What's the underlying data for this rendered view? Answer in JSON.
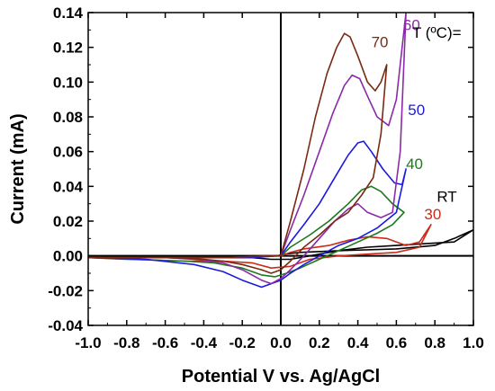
{
  "chart_data": {
    "type": "line",
    "xlabel": "Potential V vs. Ag/AgCl",
    "ylabel": "Current (mA)",
    "xlim": [
      -1.0,
      1.0
    ],
    "ylim": [
      -0.04,
      0.14
    ],
    "xticks": [
      -1.0,
      -0.8,
      -0.6,
      -0.4,
      -0.2,
      0.0,
      0.2,
      0.4,
      0.6,
      0.8,
      1.0
    ],
    "xtick_labels": [
      "-1.0",
      "-0.8",
      "-0.6",
      "-0.4",
      "-0.2",
      "0.0",
      "0.2",
      "0.4",
      "0.6",
      "0.8",
      "1.0"
    ],
    "yticks": [
      -0.04,
      -0.02,
      0.0,
      0.02,
      0.04,
      0.06,
      0.08,
      0.1,
      0.12,
      0.14
    ],
    "ytick_labels": [
      "-0.04",
      "-0.02",
      "0.00",
      "0.02",
      "0.04",
      "0.06",
      "0.08",
      "0.10",
      "0.12",
      "0.14"
    ],
    "legend_title": "T (ºC)=",
    "series": [
      {
        "name": "RT",
        "color": "#000000",
        "label_pos": [
          0.81,
          0.031
        ],
        "x": [
          -1.0,
          -0.6,
          -0.3,
          -0.1,
          -0.02,
          0.02,
          0.1,
          0.3,
          0.6,
          0.8,
          0.9,
          1.0,
          0.9,
          0.75,
          0.6,
          0.45,
          0.3,
          0.15,
          0.05,
          -0.05,
          -0.15,
          -0.3,
          -0.6,
          -1.0
        ],
        "y": [
          0.0,
          0.0,
          0.0,
          0.0,
          0.0,
          0.001,
          0.002,
          0.003,
          0.004,
          0.006,
          0.01,
          0.015,
          0.008,
          0.007,
          0.006,
          0.005,
          0.003,
          0.0,
          -0.002,
          -0.002,
          -0.001,
          -0.001,
          -0.001,
          -0.0005
        ]
      },
      {
        "name": "30",
        "color": "#cc2a1a",
        "label_pos": [
          0.745,
          0.021
        ],
        "x": [
          -1.0,
          -0.6,
          -0.2,
          -0.05,
          0.0,
          0.05,
          0.12,
          0.25,
          0.35,
          0.45,
          0.55,
          0.65,
          0.72,
          0.78,
          0.72,
          0.6,
          0.45,
          0.3,
          0.15,
          0.05,
          -0.05,
          -0.15,
          -0.3,
          -0.5,
          -0.8,
          -1.0
        ],
        "y": [
          -0.001,
          -0.001,
          -0.001,
          0.0,
          0.0,
          0.002,
          0.004,
          0.006,
          0.009,
          0.011,
          0.01,
          0.006,
          0.008,
          0.018,
          0.005,
          0.002,
          0.001,
          0.0,
          -0.002,
          -0.006,
          -0.007,
          -0.004,
          -0.003,
          -0.003,
          -0.002,
          -0.001
        ]
      },
      {
        "name": "40",
        "color": "#1c7a1c",
        "label_pos": [
          0.65,
          0.05
        ],
        "x": [
          -1.0,
          -0.5,
          -0.2,
          -0.05,
          0.0,
          0.05,
          0.15,
          0.25,
          0.35,
          0.42,
          0.47,
          0.52,
          0.58,
          0.64,
          0.58,
          0.5,
          0.4,
          0.3,
          0.2,
          0.1,
          0.03,
          -0.03,
          -0.1,
          -0.2,
          -0.35,
          -0.5,
          -1.0
        ],
        "y": [
          -0.001,
          -0.001,
          -0.001,
          0.0,
          0.0,
          0.005,
          0.012,
          0.02,
          0.03,
          0.038,
          0.04,
          0.037,
          0.03,
          0.025,
          0.018,
          0.013,
          0.008,
          0.003,
          -0.002,
          -0.007,
          -0.01,
          -0.012,
          -0.011,
          -0.007,
          -0.004,
          -0.003,
          -0.001
        ]
      },
      {
        "name": "50",
        "color": "#1a1ae0",
        "label_pos": [
          0.66,
          0.081
        ],
        "x": [
          -1.0,
          -0.4,
          -0.15,
          -0.02,
          0.0,
          0.05,
          0.12,
          0.2,
          0.28,
          0.35,
          0.4,
          0.43,
          0.47,
          0.53,
          0.59,
          0.63,
          0.65,
          0.6,
          0.5,
          0.4,
          0.3,
          0.2,
          0.12,
          0.05,
          0.0,
          -0.05,
          -0.1,
          -0.2,
          -0.3,
          -0.45,
          -0.7,
          -1.0
        ],
        "y": [
          -0.001,
          -0.001,
          -0.001,
          0.0,
          0.0,
          0.008,
          0.018,
          0.03,
          0.045,
          0.058,
          0.065,
          0.066,
          0.06,
          0.05,
          0.042,
          0.041,
          0.05,
          0.025,
          0.016,
          0.01,
          0.006,
          0.0,
          -0.005,
          -0.01,
          -0.014,
          -0.016,
          -0.018,
          -0.014,
          -0.009,
          -0.005,
          -0.002,
          -0.001
        ]
      },
      {
        "name": "60",
        "color": "#8a2aa8",
        "label_pos": [
          0.635,
          0.13
        ],
        "x": [
          -1.0,
          -0.3,
          -0.05,
          0.0,
          0.05,
          0.12,
          0.2,
          0.27,
          0.33,
          0.37,
          0.41,
          0.45,
          0.5,
          0.56,
          0.6,
          0.63,
          0.65,
          0.62,
          0.58,
          0.52,
          0.45,
          0.4,
          0.35,
          0.28,
          0.2,
          0.12,
          0.05,
          0.0,
          -0.05,
          -0.1,
          -0.2,
          -0.3,
          -0.45,
          -0.6,
          -1.0
        ],
        "y": [
          -0.001,
          -0.001,
          0.0,
          0.0,
          0.015,
          0.035,
          0.06,
          0.082,
          0.098,
          0.104,
          0.102,
          0.092,
          0.08,
          0.075,
          0.09,
          0.12,
          0.14,
          0.06,
          0.025,
          0.022,
          0.025,
          0.03,
          0.027,
          0.02,
          0.01,
          0.0,
          -0.008,
          -0.013,
          -0.016,
          -0.014,
          -0.008,
          -0.004,
          -0.002,
          -0.001,
          -0.001
        ]
      },
      {
        "name": "70",
        "color": "#7a2a12",
        "label_pos": [
          0.47,
          0.12
        ],
        "x": [
          -1.0,
          -0.3,
          -0.05,
          0.0,
          0.05,
          0.12,
          0.18,
          0.24,
          0.29,
          0.33,
          0.36,
          0.4,
          0.45,
          0.49,
          0.52,
          0.55,
          0.52,
          0.48,
          0.42,
          0.35,
          0.28,
          0.2,
          0.12,
          0.05,
          0.0,
          -0.05,
          -0.1,
          -0.2,
          -0.3,
          -0.4,
          -0.6,
          -1.0
        ],
        "y": [
          -0.001,
          -0.001,
          0.0,
          0.0,
          0.02,
          0.05,
          0.08,
          0.105,
          0.12,
          0.128,
          0.126,
          0.115,
          0.1,
          0.095,
          0.1,
          0.11,
          0.07,
          0.045,
          0.035,
          0.025,
          0.02,
          0.012,
          0.005,
          -0.003,
          -0.008,
          -0.01,
          -0.008,
          -0.005,
          -0.003,
          -0.002,
          -0.001,
          -0.001
        ]
      }
    ]
  }
}
